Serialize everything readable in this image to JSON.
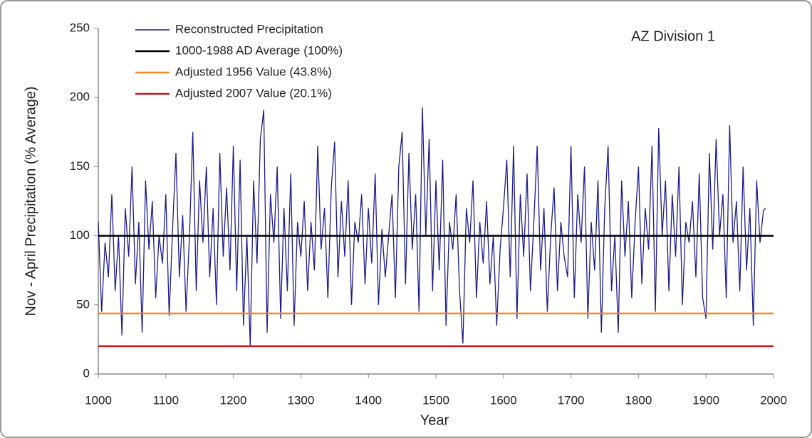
{
  "chart_data": {
    "type": "line",
    "annotation": "AZ Division 1",
    "xlabel": "Year",
    "ylabel": "Nov - April Precipitation (% Average)",
    "x": [
      1000,
      1005,
      1010,
      1015,
      1020,
      1025,
      1030,
      1035,
      1040,
      1045,
      1050,
      1055,
      1060,
      1065,
      1070,
      1075,
      1080,
      1085,
      1090,
      1095,
      1100,
      1105,
      1110,
      1115,
      1120,
      1125,
      1130,
      1135,
      1140,
      1145,
      1150,
      1155,
      1160,
      1165,
      1170,
      1175,
      1180,
      1185,
      1190,
      1195,
      1200,
      1205,
      1210,
      1215,
      1220,
      1225,
      1230,
      1235,
      1240,
      1245,
      1250,
      1255,
      1260,
      1265,
      1270,
      1275,
      1280,
      1285,
      1290,
      1295,
      1300,
      1305,
      1310,
      1315,
      1320,
      1325,
      1330,
      1335,
      1340,
      1345,
      1350,
      1355,
      1360,
      1365,
      1370,
      1375,
      1380,
      1385,
      1390,
      1395,
      1400,
      1405,
      1410,
      1415,
      1420,
      1425,
      1430,
      1435,
      1440,
      1445,
      1450,
      1455,
      1460,
      1465,
      1470,
      1475,
      1480,
      1485,
      1490,
      1495,
      1500,
      1505,
      1510,
      1515,
      1520,
      1525,
      1530,
      1535,
      1540,
      1545,
      1550,
      1555,
      1560,
      1565,
      1570,
      1575,
      1580,
      1585,
      1590,
      1595,
      1600,
      1605,
      1610,
      1615,
      1620,
      1625,
      1630,
      1635,
      1640,
      1645,
      1650,
      1655,
      1660,
      1665,
      1670,
      1675,
      1680,
      1685,
      1690,
      1695,
      1700,
      1705,
      1710,
      1715,
      1720,
      1725,
      1730,
      1735,
      1740,
      1745,
      1750,
      1755,
      1760,
      1765,
      1770,
      1775,
      1780,
      1785,
      1790,
      1795,
      1800,
      1805,
      1810,
      1815,
      1820,
      1825,
      1830,
      1835,
      1840,
      1845,
      1850,
      1855,
      1860,
      1865,
      1870,
      1875,
      1880,
      1885,
      1890,
      1895,
      1900,
      1905,
      1910,
      1915,
      1920,
      1925,
      1930,
      1935,
      1940,
      1945,
      1950,
      1955,
      1960,
      1965,
      1970,
      1975,
      1980,
      1985,
      1988
    ],
    "series": [
      {
        "name": "Reconstructed Precipitation",
        "color": "#1c1c8c",
        "values": [
          110,
          45,
          95,
          70,
          130,
          60,
          100,
          28,
          120,
          85,
          150,
          65,
          110,
          30,
          140,
          90,
          125,
          55,
          100,
          80,
          130,
          42,
          105,
          160,
          70,
          115,
          45,
          100,
          175,
          60,
          140,
          95,
          150,
          70,
          120,
          50,
          160,
          85,
          135,
          75,
          165,
          60,
          155,
          35,
          100,
          20,
          140,
          80,
          170,
          191,
          30,
          130,
          95,
          150,
          40,
          120,
          60,
          145,
          35,
          110,
          85,
          125,
          60,
          110,
          75,
          165,
          90,
          120,
          55,
          135,
          168,
          70,
          125,
          85,
          140,
          50,
          110,
          95,
          130,
          65,
          120,
          80,
          145,
          50,
          105,
          70,
          100,
          130,
          55,
          150,
          175,
          65,
          160,
          90,
          130,
          45,
          193,
          100,
          170,
          60,
          140,
          75,
          155,
          35,
          110,
          90,
          130,
          60,
          22,
          120,
          95,
          140,
          55,
          110,
          80,
          125,
          65,
          100,
          35,
          90,
          120,
          155,
          70,
          165,
          40,
          130,
          85,
          145,
          60,
          110,
          165,
          75,
          120,
          45,
          100,
          135,
          60,
          110,
          85,
          70,
          165,
          55,
          130,
          95,
          150,
          40,
          110,
          75,
          140,
          30,
          120,
          165,
          60,
          100,
          30,
          140,
          85,
          125,
          55,
          110,
          150,
          65,
          120,
          90,
          165,
          45,
          178,
          100,
          140,
          60,
          130,
          85,
          150,
          50,
          110,
          95,
          125,
          70,
          145,
          55,
          40,
          160,
          90,
          170,
          100,
          130,
          55,
          180,
          95,
          125,
          60,
          150,
          75,
          120,
          35,
          140,
          95,
          118,
          120
        ]
      }
    ],
    "reference_lines": [
      {
        "name": "1000-1988 AD Average (100%)",
        "value": 100,
        "color": "#000000"
      },
      {
        "name": "Adjusted 1956 Value  (43.8%)",
        "value": 43.8,
        "color": "#f28a22"
      },
      {
        "name": "Adjusted 2007 Value  (20.1%)",
        "value": 20.1,
        "color": "#c9141b"
      }
    ],
    "xlim": [
      1000,
      2000
    ],
    "xticks": [
      1000,
      1100,
      1200,
      1300,
      1400,
      1500,
      1600,
      1700,
      1800,
      1900,
      2000
    ],
    "ylim": [
      0,
      250
    ],
    "yticks": [
      0,
      50,
      100,
      150,
      200,
      250
    ],
    "legend": "upper left",
    "grid": false
  }
}
